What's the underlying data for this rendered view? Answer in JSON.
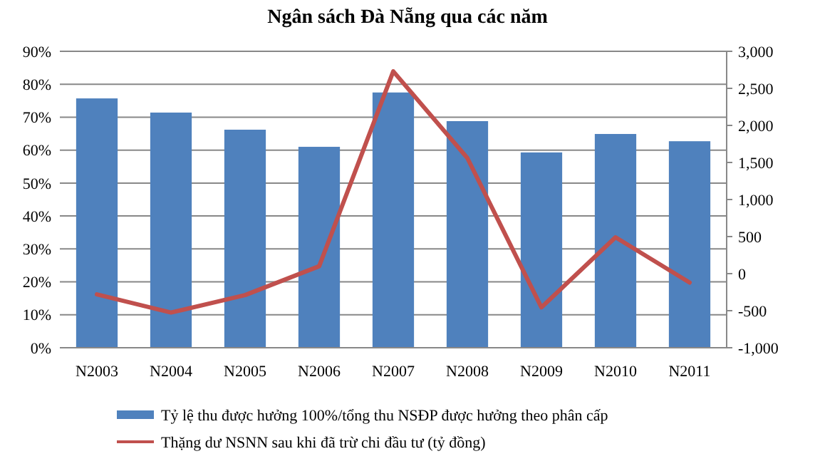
{
  "chart_data": {
    "type": "bar",
    "title": "Ngân sách Đà Nẵng qua các năm",
    "categories": [
      "N2003",
      "N2004",
      "N2005",
      "N2006",
      "N2007",
      "N2008",
      "N2009",
      "N2010",
      "N2011"
    ],
    "series": [
      {
        "name": "Tỷ lệ thu được hưởng 100%/tổng thu NSĐP  được hưởng theo phân cấp",
        "color": "#4f81bd",
        "values": [
          0.757,
          0.714,
          0.662,
          0.61,
          0.775,
          0.688,
          0.593,
          0.649,
          0.627
        ]
      },
      {
        "type": "line",
        "axis": "y2",
        "name": "Thặng dư NSNN  sau khi đã trừ chi đầu tư (tỷ đồng)",
        "color": "#c0504d",
        "values": [
          -280,
          -525,
          -290,
          100,
          2730,
          1560,
          -455,
          490,
          -120
        ]
      }
    ],
    "ylim": [
      0,
      0.9
    ],
    "yticks": [
      {
        "value": 0,
        "label": "0%"
      },
      {
        "value": 0.1,
        "label": "10%"
      },
      {
        "value": 0.2,
        "label": "20%"
      },
      {
        "value": 0.3,
        "label": "30%"
      },
      {
        "value": 0.4,
        "label": "40%"
      },
      {
        "value": 0.5,
        "label": "50%"
      },
      {
        "value": 0.6,
        "label": "60%"
      },
      {
        "value": 0.7,
        "label": "70%"
      },
      {
        "value": 0.8,
        "label": "80%"
      },
      {
        "value": 0.9,
        "label": "90%"
      }
    ],
    "y2lim": [
      -1000,
      3000
    ],
    "y2ticks": [
      {
        "value": -1000,
        "label": "-1,000"
      },
      {
        "value": -500,
        "label": "-500"
      },
      0,
      500,
      {
        "value": 1000,
        "label": "1,000"
      },
      {
        "value": 1500,
        "label": "1,500"
      },
      {
        "value": 2000,
        "label": "2,000"
      },
      {
        "value": 2500,
        "label": "2,500"
      },
      {
        "value": 3000,
        "label": "3,000"
      }
    ],
    "grid": "y",
    "legend": "bottom"
  }
}
